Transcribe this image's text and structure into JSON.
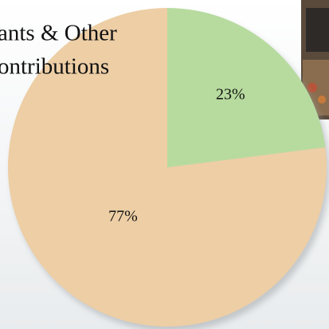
{
  "chart_data": {
    "type": "pie",
    "title_lines": [
      "ants & Other",
      "ontributions"
    ],
    "values": [
      23,
      77
    ],
    "value_labels": [
      "23%",
      "77%"
    ],
    "colors": [
      "#b7db9f",
      "#edcea5"
    ]
  }
}
